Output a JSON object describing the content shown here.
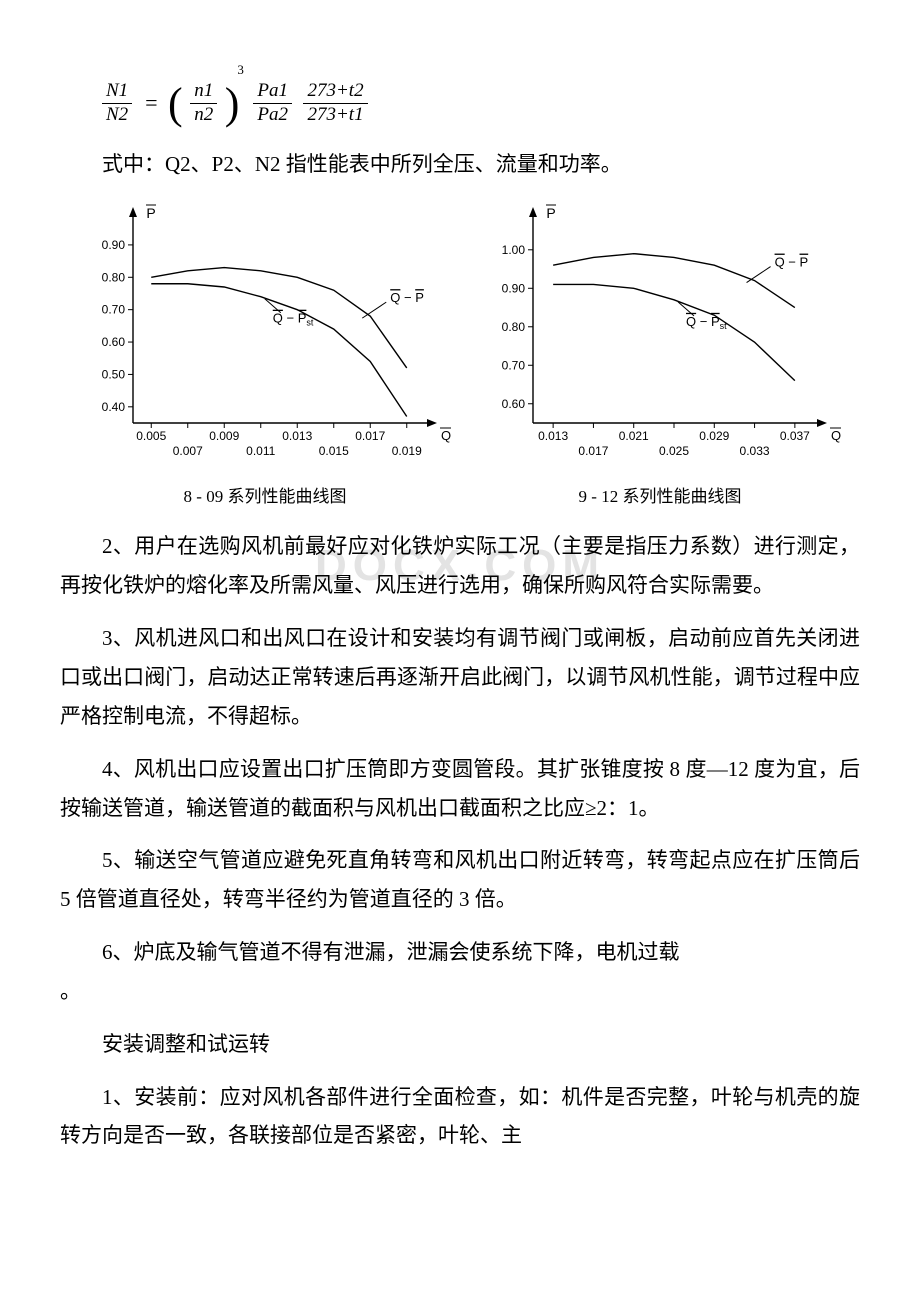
{
  "formula": {
    "lhs_num": "N1",
    "lhs_den": "N2",
    "r1_num": "n1",
    "r1_den": "n2",
    "r1_power": "3",
    "r2_num": "Pa1",
    "r2_den": "Pa2",
    "r3_num": "273+t2",
    "r3_den": "273+t1"
  },
  "text": {
    "formula_note": "式中：Q2、P2、N2 指性能表中所列全压、流量和功率。",
    "p2": "2、用户在选购风机前最好应对化铁炉实际工况（主要是指压力系数）进行测定，再按化铁炉的熔化率及所需风量、风压进行选用，确保所购风符合实际需要。",
    "p3": "3、风机进风口和出风口在设计和安装均有调节阀门或闸板，启动前应首先关闭进口或出口阀门，启动达正常转速后再逐渐开启此阀门，以调节风机性能，调节过程中应严格控制电流，不得超标。",
    "p4": "4、风机出口应设置出口扩压筒即方变圆管段。其扩张锥度按 8 度—12 度为宜，后按输送管道，输送管道的截面积与风机出口截面积之比应≥2：1。",
    "p5": "5、输送空气管道应避免死直角转弯和风机出口附近转弯，转弯起点应在扩压筒后 5 倍管道直径处，转弯半径约为管道直径的 3 倍。",
    "p6": "6、炉底及输气管道不得有泄漏，泄漏会使系统下降，电机过载",
    "p6b": "。",
    "section": "安装调整和试运转",
    "p7": "1、安装前：应对风机各部件进行全面检查，如：机件是否完整，叶轮与机壳的旋转方向是否一致，各联接部位是否紧密，叶轮、主",
    "watermark": "DOCX.COM"
  },
  "chart1": {
    "caption": "8 - 09 系列性能曲线图",
    "type": "line",
    "y_label": "P̄",
    "y_ticks": [
      "0.40",
      "0.50",
      "0.60",
      "0.70",
      "0.80",
      "0.90"
    ],
    "y_values": [
      0.4,
      0.5,
      0.6,
      0.7,
      0.8,
      0.9
    ],
    "ylim": [
      0.35,
      0.98
    ],
    "x_ticks_top": [
      "0.005",
      "0.009",
      "0.013",
      "0.017"
    ],
    "x_ticks_bot": [
      "0.007",
      "0.011",
      "0.015",
      "0.019"
    ],
    "x_values": [
      0.005,
      0.007,
      0.009,
      0.011,
      0.013,
      0.015,
      0.017,
      0.019
    ],
    "x_label": "Q̄",
    "xlim": [
      0.004,
      0.02
    ],
    "curve_labels": [
      "Q̄ − P̄",
      "Q̄ − P̄st"
    ],
    "curve1": [
      [
        0.005,
        0.8
      ],
      [
        0.007,
        0.82
      ],
      [
        0.009,
        0.83
      ],
      [
        0.011,
        0.82
      ],
      [
        0.013,
        0.8
      ],
      [
        0.015,
        0.76
      ],
      [
        0.017,
        0.68
      ],
      [
        0.019,
        0.52
      ]
    ],
    "curve2": [
      [
        0.005,
        0.78
      ],
      [
        0.007,
        0.78
      ],
      [
        0.009,
        0.77
      ],
      [
        0.011,
        0.74
      ],
      [
        0.013,
        0.7
      ],
      [
        0.015,
        0.64
      ],
      [
        0.017,
        0.54
      ],
      [
        0.019,
        0.37
      ]
    ],
    "line_width": 1.4,
    "line_color": "#000000",
    "bg": "#ffffff",
    "font_size": 12
  },
  "chart2": {
    "caption": "9 - 12 系列性能曲线图",
    "type": "line",
    "y_label": "P̄",
    "y_ticks": [
      "0.60",
      "0.70",
      "0.80",
      "0.90",
      "1.00"
    ],
    "y_values": [
      0.6,
      0.7,
      0.8,
      0.9,
      1.0
    ],
    "ylim": [
      0.55,
      1.08
    ],
    "x_ticks_top": [
      "0.013",
      "0.021",
      "0.029",
      "0.037"
    ],
    "x_ticks_bot": [
      "0.017",
      "0.025",
      "0.033"
    ],
    "x_values": [
      0.013,
      0.017,
      0.021,
      0.025,
      0.029,
      0.033,
      0.037
    ],
    "x_label": "Q̄",
    "xlim": [
      0.011,
      0.039
    ],
    "curve_labels": [
      "Q̄ − P̄",
      "Q̄ − P̄st"
    ],
    "curve1": [
      [
        0.013,
        0.96
      ],
      [
        0.017,
        0.98
      ],
      [
        0.021,
        0.99
      ],
      [
        0.025,
        0.98
      ],
      [
        0.029,
        0.96
      ],
      [
        0.033,
        0.92
      ],
      [
        0.037,
        0.85
      ]
    ],
    "curve2": [
      [
        0.013,
        0.91
      ],
      [
        0.017,
        0.91
      ],
      [
        0.021,
        0.9
      ],
      [
        0.025,
        0.87
      ],
      [
        0.029,
        0.83
      ],
      [
        0.033,
        0.76
      ],
      [
        0.037,
        0.66
      ]
    ],
    "line_width": 1.4,
    "line_color": "#000000",
    "bg": "#ffffff",
    "font_size": 12
  }
}
